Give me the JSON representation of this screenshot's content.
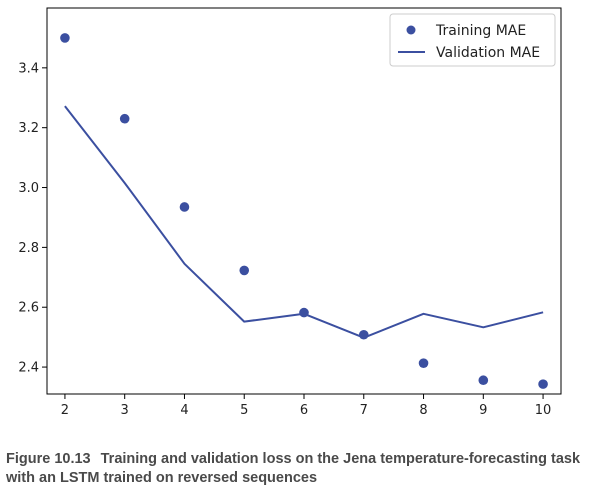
{
  "chart_data": {
    "type": "line",
    "x": [
      2,
      3,
      4,
      5,
      6,
      7,
      8,
      9,
      10
    ],
    "series": [
      {
        "name": "Training MAE",
        "style": "scatter",
        "color": "#3b4fa0",
        "values": [
          3.5,
          3.23,
          2.935,
          2.723,
          2.582,
          2.508,
          2.413,
          2.356,
          2.343
        ]
      },
      {
        "name": "Validation MAE",
        "style": "line",
        "color": "#3b4fa0",
        "values": [
          3.272,
          3.015,
          2.745,
          2.552,
          2.578,
          2.498,
          2.578,
          2.533,
          2.583
        ]
      }
    ],
    "xlim": [
      1.7,
      10.3
    ],
    "ylim": [
      2.31,
      3.6
    ],
    "xticks": [
      2,
      3,
      4,
      5,
      6,
      7,
      8,
      9,
      10
    ],
    "yticks": [
      2.4,
      2.6,
      2.8,
      3.0,
      3.2,
      3.4
    ],
    "ytick_labels": [
      "2.4",
      "2.6",
      "2.8",
      "3.0",
      "3.2",
      "3.4"
    ],
    "legend_position": "top-right",
    "grid": false
  },
  "caption": {
    "figure_label": "Figure 10.13",
    "text": "Training and validation loss on the Jena temperature-forecasting task with an LSTM trained on reversed sequences"
  }
}
